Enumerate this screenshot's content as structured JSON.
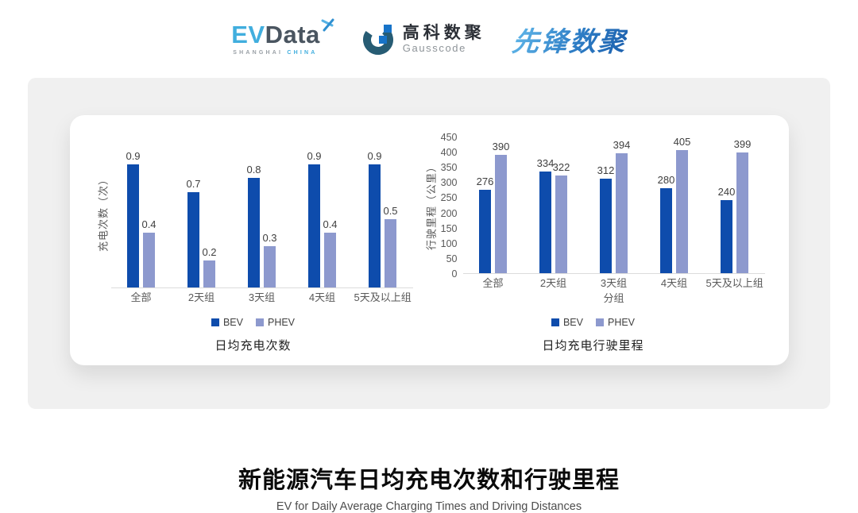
{
  "header": {
    "evdata": {
      "name_ev": "EV",
      "name_data": "Data",
      "sub_shanghai": "SHANGHAI",
      "sub_china": "CHINA"
    },
    "gausscode": {
      "name_cn": "高科数聚",
      "name_en": "Gausscode"
    },
    "pioneer_logo": "先锋数聚"
  },
  "chart_data": [
    {
      "type": "bar",
      "title": "日均充电次数",
      "ylabel": "充电次数（次）",
      "xlabel": "",
      "categories": [
        "全部",
        "2天组",
        "3天组",
        "4天组",
        "5天及以上组"
      ],
      "series": [
        {
          "name": "BEV",
          "color": "#0E4CAC",
          "values": [
            0.9,
            0.7,
            0.8,
            0.9,
            0.9
          ]
        },
        {
          "name": "PHEV",
          "color": "#8D99CE",
          "values": [
            0.4,
            0.2,
            0.3,
            0.4,
            0.5
          ]
        }
      ],
      "ylim": [
        0,
        1
      ],
      "yticks": [],
      "grid": false,
      "legend_position": "bottom",
      "value_labels": true
    },
    {
      "type": "bar",
      "title": "日均充电行驶里程",
      "ylabel": "行驶里程（公里）",
      "xlabel": "分组",
      "categories": [
        "全部",
        "2天组",
        "3天组",
        "4天组",
        "5天及以上组"
      ],
      "series": [
        {
          "name": "BEV",
          "color": "#0E4CAC",
          "values": [
            276,
            334,
            312,
            280,
            240
          ]
        },
        {
          "name": "PHEV",
          "color": "#8D99CE",
          "values": [
            390,
            322,
            394,
            405,
            399
          ]
        }
      ],
      "ylim": [
        0,
        450
      ],
      "yticks": [
        0,
        50,
        100,
        150,
        200,
        250,
        300,
        350,
        400,
        450
      ],
      "grid": false,
      "legend_position": "bottom",
      "value_labels": true
    }
  ],
  "footer": {
    "title": "新能源汽车日均充电次数和行驶里程",
    "subtitle": "EV for Daily Average Charging Times and Driving Distances"
  },
  "colors": {
    "bev": "#0E4CAC",
    "phev": "#8D99CE",
    "axis_text": "#595959",
    "panel_bg": "#F0F0F0"
  }
}
